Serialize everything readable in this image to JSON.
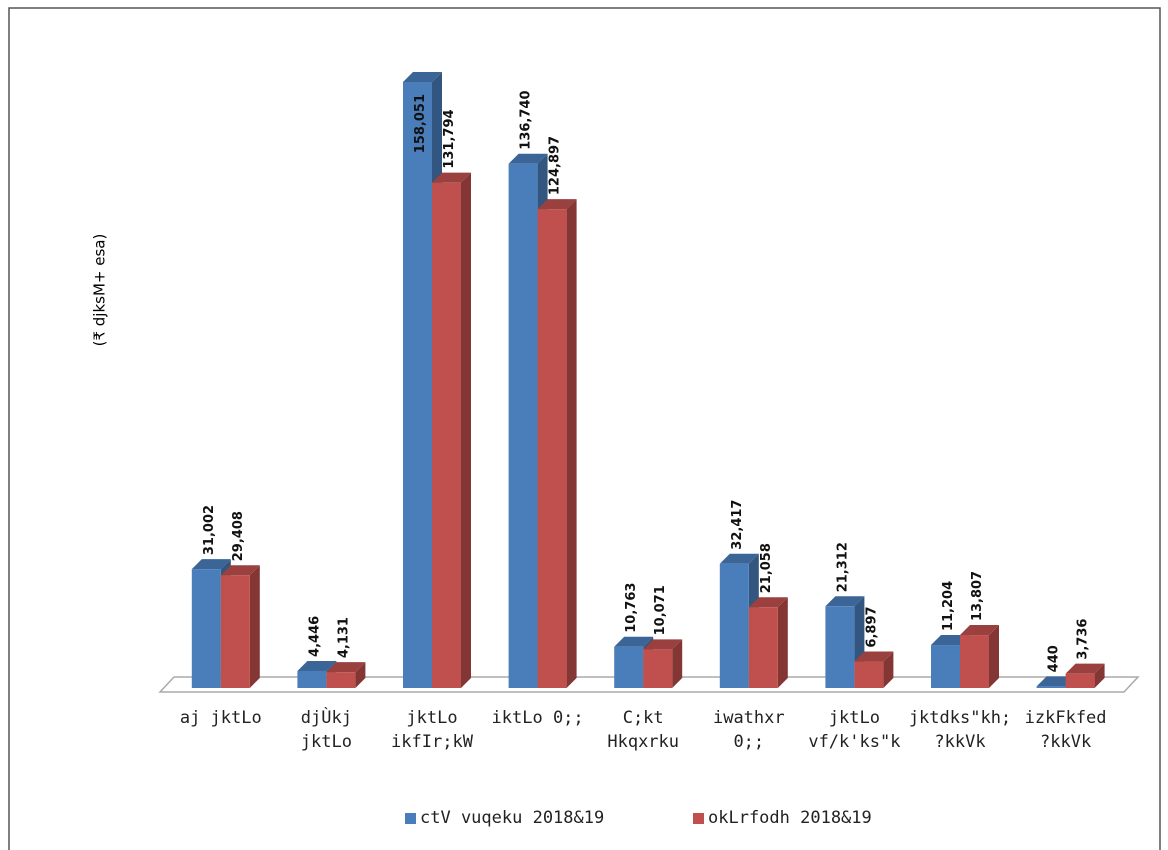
{
  "chart_data": {
    "type": "bar3d",
    "y_label": "(₹ djksM+ esa)",
    "categories": [
      "aj jktLo",
      "djÙkj\njktLo",
      "jktLo\nikfIr;kW",
      "iktLo 0;;",
      "C;kt\nHkqxrku",
      "iwathxr\n0;;",
      "jktLo\nvf/k'ks\"k",
      "jktdks\"kh;\n?kkVk",
      "izkFkfed\n?kkVk"
    ],
    "series": [
      {
        "name": "ctV vuqeku 2018&19",
        "color": "#4a7ebb",
        "values": [
          31002,
          4446,
          158051,
          136740,
          10763,
          32417,
          21312,
          11204,
          440
        ],
        "value_labels": [
          "31,002",
          "4,446",
          "158,051",
          "136,740",
          "10,763",
          "32,417",
          "21,312",
          "11,204",
          "440"
        ]
      },
      {
        "name": "okLrfodh 2018&19",
        "color": "#c0504d",
        "values": [
          29408,
          4131,
          131794,
          124897,
          10071,
          21058,
          6897,
          13807,
          3736
        ],
        "value_labels": [
          "29,408",
          "4,131",
          "131,794",
          "124,897",
          "10,071",
          "21,058",
          "6,897",
          "13,807",
          "3,736"
        ]
      }
    ],
    "legend": "bottom"
  }
}
